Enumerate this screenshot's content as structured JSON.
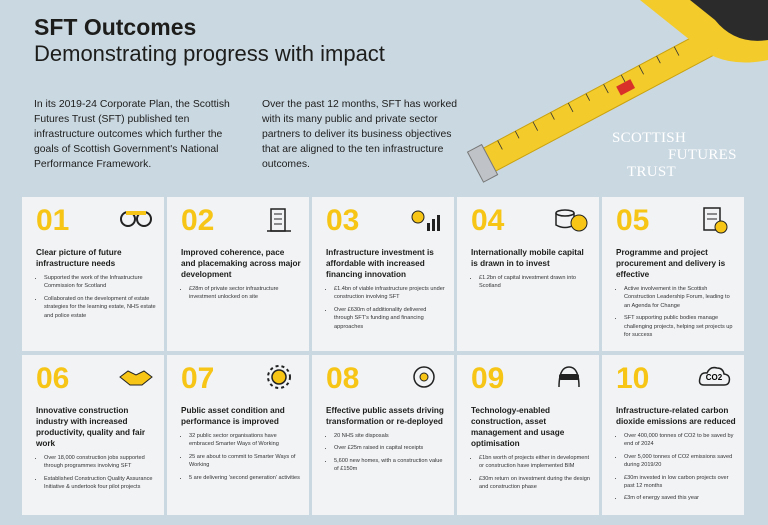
{
  "header": {
    "title": "SFT Outcomes",
    "subtitle": "Demonstrating progress with impact"
  },
  "intro": [
    "In its 2019-24 Corporate Plan, the Scottish Futures Trust (SFT) published ten infrastructure outcomes which further the goals of Scottish Government's National Performance Framework.",
    "Over the past 12 months, SFT has worked with its many public and private sector partners to deliver its business objectives that are aligned to the ten infrastructure outcomes."
  ],
  "logo": [
    "SCOTTISH",
    "FUTURES",
    "TRUST"
  ],
  "cards": [
    {
      "number": "01",
      "title": "Clear picture of future infrastructure needs",
      "bullets": [
        "Supported the work of the Infrastructure Commission for Scotland",
        "Collaborated on the development of estate strategies for the learning estate, NHS estate and police estate"
      ]
    },
    {
      "number": "02",
      "title": "Improved coherence, pace and placemaking across major development",
      "bullets": [
        "£28m of private sector infrastructure investment unlocked on site"
      ]
    },
    {
      "number": "03",
      "title": "Infrastructure investment is affordable with increased financing innovation",
      "bullets": [
        "£1.4bn of viable infrastructure projects under construction involving SFT",
        "Over £630m of additionality delivered through SFT's funding and financing approaches"
      ]
    },
    {
      "number": "04",
      "title": "Internationally mobile capital is drawn in to invest",
      "bullets": [
        "£1.2bn of capital investment drawn into Scotland"
      ]
    },
    {
      "number": "05",
      "title": "Programme and project procurement and delivery is effective",
      "bullets": [
        "Active involvement in the Scottish Construction Leadership Forum, leading to an Agenda for Change",
        "SFT supporting public bodies manage challenging projects, helping set projects up for success"
      ]
    },
    {
      "number": "06",
      "title": "Innovative construction industry with increased productivity, quality and fair work",
      "bullets": [
        "Over 18,000 construction jobs supported through programmes involving SFT",
        "Established Construction Quality Assurance Initiative & undertook four pilot projects"
      ]
    },
    {
      "number": "07",
      "title": "Public asset condition and performance is improved",
      "bullets": [
        "32 public sector organisations have embraced Smarter Ways of Working",
        "25 are about to commit to Smarter Ways of Working",
        "5 are delivering 'second generation' activities"
      ]
    },
    {
      "number": "08",
      "title": "Effective public assets driving transformation or re-deployed",
      "bullets": [
        "20 NHS site disposals",
        "Over £25m raised in capital receipts",
        "5,600 new homes, with a construction value of £150m"
      ]
    },
    {
      "number": "09",
      "title": "Technology-enabled construction, asset management and usage optimisation",
      "bullets": [
        "£1bn worth of projects either in development or construction have implemented BIM",
        "£30m return on investment during the design and construction phase"
      ]
    },
    {
      "number": "10",
      "title": "Infrastructure-related carbon dioxide emissions are reduced",
      "icon_label": "CO2",
      "bullets": [
        "Over 400,000 tonnes of CO2 to be saved by end of 2024",
        "Over 5,000 tonnes of CO2 emissions saved during 2019/20",
        "£30m invested in low carbon projects over past 12 months",
        "£3m of energy saved this year"
      ]
    }
  ]
}
